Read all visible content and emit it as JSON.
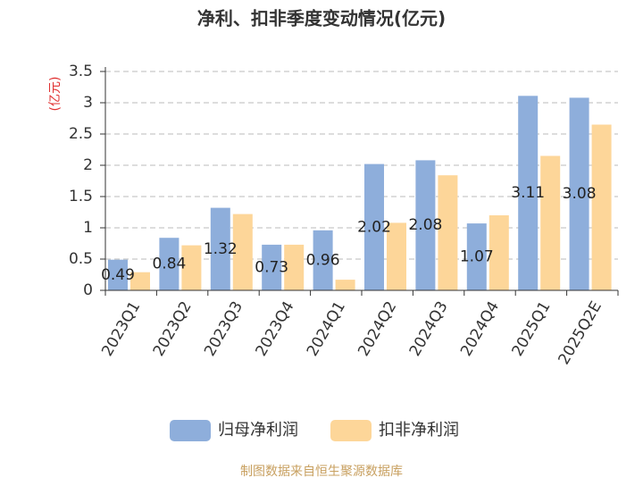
{
  "chart_data": {
    "type": "bar",
    "title": "净利、扣非季度变动情况(亿元)",
    "y_label": "(亿元)",
    "source": "制图数据来自恒生聚源数据库",
    "categories": [
      "2023Q1",
      "2023Q2",
      "2023Q3",
      "2023Q4",
      "2024Q1",
      "2024Q2",
      "2024Q3",
      "2024Q4",
      "2025Q1",
      "2025Q2E"
    ],
    "series": [
      {
        "name": "归母净利润",
        "color": "#8eaedb",
        "values": [
          0.49,
          0.84,
          1.32,
          0.73,
          0.96,
          2.02,
          2.08,
          1.07,
          3.11,
          3.08
        ]
      },
      {
        "name": "扣非净利润",
        "color": "#fdd699",
        "values": [
          0.29,
          0.72,
          1.22,
          0.73,
          0.17,
          1.08,
          1.84,
          1.2,
          2.15,
          2.65
        ]
      }
    ],
    "ylim": [
      0,
      3.5
    ],
    "yticks": [
      0,
      0.5,
      1,
      1.5,
      2,
      2.5,
      3,
      3.5
    ],
    "grid": true
  }
}
